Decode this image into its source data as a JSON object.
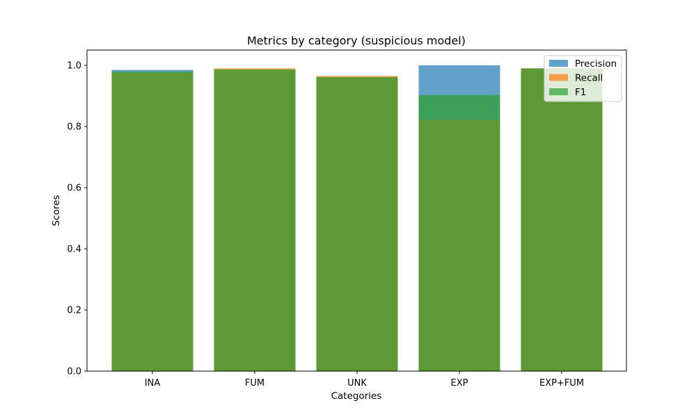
{
  "chart_data": {
    "type": "bar",
    "title": "Metrics by category (suspicious model)",
    "xlabel": "Categories",
    "ylabel": "Scores",
    "ylim": [
      0,
      1.05
    ],
    "yticks": [
      "0.0",
      "0.2",
      "0.4",
      "0.6",
      "0.8",
      "1.0"
    ],
    "categories": [
      "INA",
      "FUM",
      "UNK",
      "EXP",
      "EXP+FUM"
    ],
    "series": [
      {
        "name": "Precision",
        "color": "#1f77b4",
        "values": [
          0.985,
          0.985,
          0.96,
          1.0,
          0.99
        ]
      },
      {
        "name": "Recall",
        "color": "#ff7f0e",
        "values": [
          0.975,
          0.99,
          0.965,
          0.822,
          0.99
        ]
      },
      {
        "name": "F1",
        "color": "#2ca02c",
        "values": [
          0.98,
          0.987,
          0.962,
          0.903,
          0.99
        ]
      }
    ],
    "opacity": 0.7,
    "legend": "top-right",
    "grid": false
  }
}
